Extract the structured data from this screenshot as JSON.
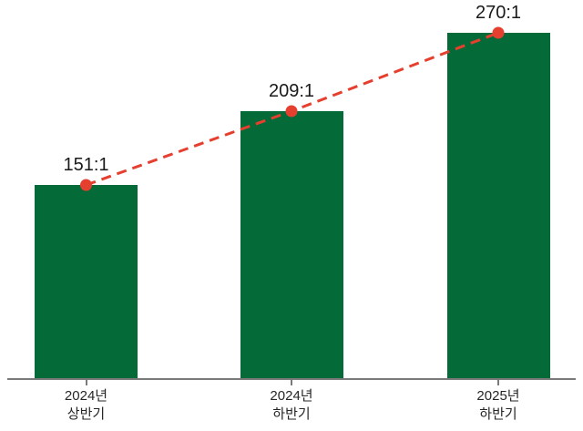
{
  "chart_data": {
    "type": "bar",
    "overlay": "line",
    "title": "",
    "xlabel": "",
    "ylabel": "",
    "categories": [
      "2024년\n상반기",
      "2024년\n하반기",
      "2025년\n하반기"
    ],
    "values": [
      151,
      209,
      270
    ],
    "value_labels": [
      "151:1",
      "209:1",
      "270:1"
    ],
    "ylim": [
      0,
      290
    ],
    "grid": false,
    "legend": false,
    "colors": {
      "bar": "#046a38",
      "line": "#e5402f",
      "marker": "#e5402f",
      "axis": "#7a7a7a",
      "label_text": "#1a1a1a",
      "background": "#ffffff"
    }
  }
}
